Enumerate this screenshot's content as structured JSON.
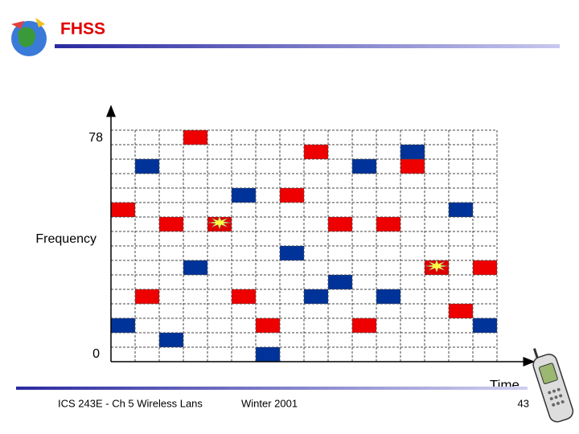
{
  "header": {
    "title": "FHSS"
  },
  "diagram": {
    "y_top_label": "78",
    "y_axis_label": "Frequency",
    "y_bottom_label": "0",
    "x_axis_label": "Time"
  },
  "footer": {
    "course": "ICS 243E - Ch 5 Wireless Lans",
    "term": "Winter 2001",
    "page": "43"
  }
}
